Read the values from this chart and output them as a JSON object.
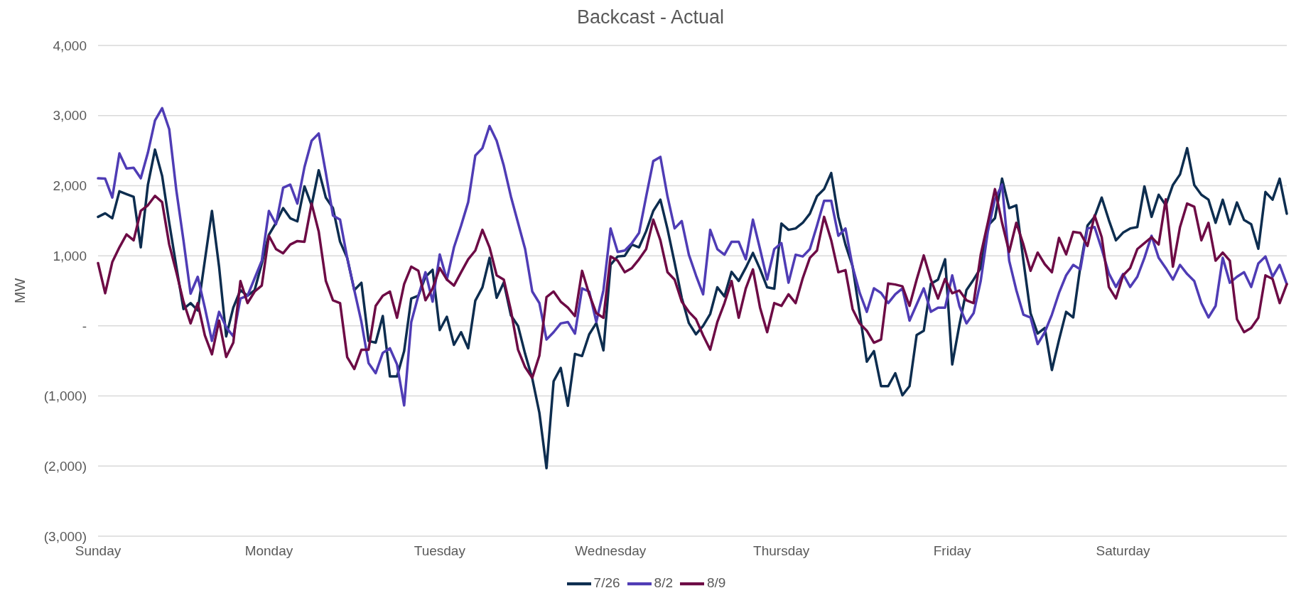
{
  "chart_data": {
    "type": "line",
    "title": "Backcast - Actual",
    "ylabel": "MW",
    "categories": [
      "Sunday",
      null,
      null,
      null,
      null,
      null,
      null,
      null,
      null,
      null,
      null,
      null,
      null,
      null,
      null,
      null,
      null,
      null,
      null,
      null,
      null,
      null,
      null,
      null,
      "Monday",
      null,
      null,
      null,
      null,
      null,
      null,
      null,
      null,
      null,
      null,
      null,
      null,
      null,
      null,
      null,
      null,
      null,
      null,
      null,
      null,
      null,
      null,
      null,
      "Tuesday",
      null,
      null,
      null,
      null,
      null,
      null,
      null,
      null,
      null,
      null,
      null,
      null,
      null,
      null,
      null,
      null,
      null,
      null,
      null,
      null,
      null,
      null,
      null,
      "Wednesday",
      null,
      null,
      null,
      null,
      null,
      null,
      null,
      null,
      null,
      null,
      null,
      null,
      null,
      null,
      null,
      null,
      null,
      null,
      null,
      null,
      null,
      null,
      null,
      "Thursday",
      null,
      null,
      null,
      null,
      null,
      null,
      null,
      null,
      null,
      null,
      null,
      null,
      null,
      null,
      null,
      null,
      null,
      null,
      null,
      null,
      null,
      null,
      null,
      "Friday",
      null,
      null,
      null,
      null,
      null,
      null,
      null,
      null,
      null,
      null,
      null,
      null,
      null,
      null,
      null,
      null,
      null,
      null,
      null,
      null,
      null,
      null,
      null,
      "Saturday",
      null,
      null,
      null,
      null,
      null,
      null,
      null,
      null,
      null,
      null,
      null,
      null,
      null,
      null,
      null,
      null,
      null,
      null,
      null,
      null,
      null,
      null,
      null
    ],
    "series": [
      {
        "name": "7/26",
        "color": "#0d2d4f",
        "values": [
          1555,
          1605,
          1535,
          1920,
          1880,
          1840,
          1120,
          2010,
          2515,
          2140,
          1470,
          845,
          240,
          325,
          220,
          930,
          1640,
          845,
          -150,
          260,
          510,
          430,
          510,
          890,
          1300,
          1470,
          1680,
          1535,
          1490,
          1990,
          1720,
          2220,
          1830,
          1680,
          1200,
          970,
          510,
          615,
          -215,
          -240,
          140,
          -720,
          -720,
          -360,
          390,
          430,
          700,
          800,
          -60,
          130,
          -270,
          -90,
          -320,
          360,
          550,
          970,
          400,
          620,
          150,
          0,
          -400,
          -750,
          -1240,
          -2030,
          -790,
          -600,
          -1140,
          -400,
          -430,
          -120,
          40,
          -350,
          870,
          990,
          1000,
          1160,
          1120,
          1350,
          1640,
          1800,
          1380,
          900,
          400,
          40,
          -120,
          0,
          170,
          550,
          420,
          770,
          640,
          830,
          1040,
          810,
          550,
          530,
          1460,
          1370,
          1390,
          1470,
          1600,
          1850,
          1950,
          2180,
          1555,
          1160,
          850,
          180,
          -510,
          -360,
          -860,
          -860,
          -675,
          -990,
          -860,
          -130,
          -70,
          600,
          660,
          950,
          -550,
          10,
          510,
          660,
          825,
          1430,
          1535,
          2100,
          1680,
          1720,
          930,
          180,
          -110,
          -30,
          -630,
          -200,
          200,
          120,
          850,
          1430,
          1555,
          1830,
          1510,
          1220,
          1330,
          1390,
          1410,
          1990,
          1555,
          1870,
          1720,
          2010,
          2160,
          2535,
          2010,
          1870,
          1800,
          1470,
          1800,
          1450,
          1760,
          1510,
          1450,
          1100,
          1910,
          1800,
          2100,
          1600
        ]
      },
      {
        "name": "8/2",
        "color": "#4f3cb5",
        "values": [
          2105,
          2100,
          1830,
          2460,
          2245,
          2255,
          2105,
          2470,
          2930,
          3105,
          2805,
          1930,
          1220,
          460,
          700,
          260,
          -215,
          200,
          -20,
          -150,
          390,
          430,
          680,
          930,
          1640,
          1450,
          1970,
          2015,
          1745,
          2265,
          2640,
          2745,
          2180,
          1575,
          1515,
          970,
          510,
          55,
          -530,
          -675,
          -385,
          -320,
          -550,
          -1135,
          55,
          430,
          765,
          345,
          1020,
          660,
          1120,
          1430,
          1765,
          2430,
          2535,
          2850,
          2640,
          2285,
          1845,
          1470,
          1095,
          490,
          325,
          -195,
          -90,
          35,
          55,
          -110,
          535,
          490,
          55,
          510,
          1390,
          1055,
          1075,
          1180,
          1325,
          1845,
          2350,
          2410,
          1845,
          1390,
          1495,
          1015,
          720,
          450,
          1370,
          1095,
          1015,
          1200,
          1200,
          950,
          1515,
          1095,
          660,
          1095,
          1180,
          615,
          1015,
          990,
          1095,
          1430,
          1785,
          1785,
          1285,
          1390,
          845,
          470,
          200,
          535,
          470,
          325,
          450,
          535,
          75,
          305,
          535,
          200,
          260,
          260,
          720,
          285,
          35,
          180,
          640,
          1345,
          1805,
          2015,
          930,
          510,
          160,
          120,
          -260,
          -90,
          160,
          470,
          720,
          870,
          805,
          1390,
          1410,
          1095,
          750,
          555,
          740,
          555,
          700,
          970,
          1285,
          970,
          825,
          660,
          870,
          740,
          640,
          325,
          120,
          285,
          970,
          615,
          700,
          765,
          555,
          890,
          990,
          700,
          870,
          595
        ]
      },
      {
        "name": "8/9",
        "color": "#6d0b45",
        "values": [
          895,
          465,
          910,
          1120,
          1305,
          1220,
          1640,
          1720,
          1855,
          1765,
          1160,
          765,
          345,
          35,
          325,
          -135,
          -405,
          75,
          -445,
          -240,
          640,
          325,
          490,
          575,
          1285,
          1095,
          1035,
          1160,
          1210,
          1200,
          1745,
          1345,
          640,
          365,
          325,
          -445,
          -615,
          -340,
          -340,
          285,
          430,
          490,
          115,
          595,
          845,
          785,
          365,
          535,
          825,
          660,
          575,
          765,
          950,
          1075,
          1370,
          1120,
          720,
          660,
          220,
          -340,
          -590,
          -740,
          -425,
          410,
          490,
          345,
          260,
          140,
          785,
          450,
          180,
          115,
          990,
          930,
          765,
          825,
          950,
          1095,
          1515,
          1220,
          765,
          660,
          345,
          200,
          95,
          -135,
          -340,
          55,
          325,
          640,
          115,
          535,
          805,
          260,
          -90,
          325,
          285,
          450,
          325,
          680,
          970,
          1075,
          1555,
          1220,
          765,
          795,
          240,
          35,
          -70,
          -240,
          -195,
          605,
          590,
          565,
          285,
          660,
          1005,
          660,
          390,
          670,
          465,
          505,
          365,
          325,
          1015,
          1470,
          1950,
          1470,
          1055,
          1470,
          1160,
          785,
          1045,
          880,
          765,
          1255,
          1020,
          1340,
          1325,
          1140,
          1575,
          1265,
          555,
          390,
          720,
          825,
          1095,
          1180,
          1265,
          1160,
          1805,
          845,
          1410,
          1745,
          1700,
          1220,
          1470,
          930,
          1045,
          930,
          95,
          -90,
          -30,
          115,
          720,
          670,
          325,
          595
        ]
      }
    ],
    "ylim": [
      -3000,
      4000
    ],
    "yticks": [
      {
        "value": -3000,
        "label": "(3,000)"
      },
      {
        "value": -2000,
        "label": "(2,000)"
      },
      {
        "value": -1000,
        "label": "(1,000)"
      },
      {
        "value": 0,
        "label": "-"
      },
      {
        "value": 1000,
        "label": "1,000"
      },
      {
        "value": 2000,
        "label": "2,000"
      },
      {
        "value": 3000,
        "label": "3,000"
      },
      {
        "value": 4000,
        "label": "4,000"
      }
    ],
    "grid": "y",
    "legend": "bottom",
    "marker": "none",
    "line_style": "solid"
  }
}
